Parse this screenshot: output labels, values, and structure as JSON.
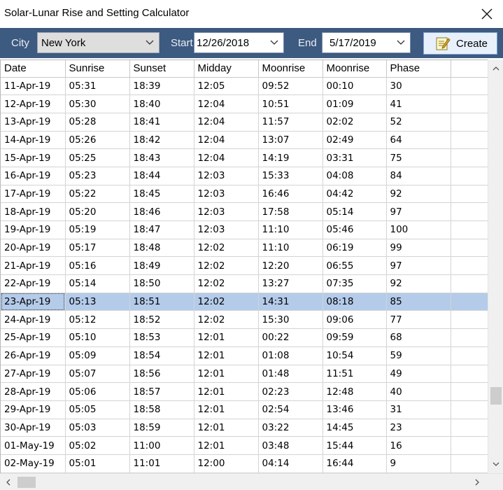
{
  "window": {
    "title": "Solar-Lunar Rise and Setting Calculator"
  },
  "toolbar": {
    "city_label": "City",
    "city_value": "New York",
    "start_label": "Start",
    "start_value": "12/26/2018",
    "end_label": "End",
    "end_value": "5/17/2019",
    "create_label": "Create"
  },
  "table": {
    "headers": [
      "Date",
      "Sunrise",
      "Sunset",
      "Midday",
      "Moonrise",
      "Moonrise",
      "Phase",
      ""
    ],
    "selected_index": 12,
    "rows": [
      [
        "11-Apr-19",
        "05:31",
        "18:39",
        "12:05",
        "09:52",
        "00:10",
        "30"
      ],
      [
        "12-Apr-19",
        "05:30",
        "18:40",
        "12:04",
        "10:51",
        "01:09",
        "41"
      ],
      [
        "13-Apr-19",
        "05:28",
        "18:41",
        "12:04",
        "11:57",
        "02:02",
        "52"
      ],
      [
        "14-Apr-19",
        "05:26",
        "18:42",
        "12:04",
        "13:07",
        "02:49",
        "64"
      ],
      [
        "15-Apr-19",
        "05:25",
        "18:43",
        "12:04",
        "14:19",
        "03:31",
        "75"
      ],
      [
        "16-Apr-19",
        "05:23",
        "18:44",
        "12:03",
        "15:33",
        "04:08",
        "84"
      ],
      [
        "17-Apr-19",
        "05:22",
        "18:45",
        "12:03",
        "16:46",
        "04:42",
        "92"
      ],
      [
        "18-Apr-19",
        "05:20",
        "18:46",
        "12:03",
        "17:58",
        "05:14",
        "97"
      ],
      [
        "19-Apr-19",
        "05:19",
        "18:47",
        "12:03",
        "11:10",
        "05:46",
        "100"
      ],
      [
        "20-Apr-19",
        "05:17",
        "18:48",
        "12:02",
        "11:10",
        "06:19",
        "99"
      ],
      [
        "21-Apr-19",
        "05:16",
        "18:49",
        "12:02",
        "12:20",
        "06:55",
        "97"
      ],
      [
        "22-Apr-19",
        "05:14",
        "18:50",
        "12:02",
        "13:27",
        "07:35",
        "92"
      ],
      [
        "23-Apr-19",
        "05:13",
        "18:51",
        "12:02",
        "14:31",
        "08:18",
        "85"
      ],
      [
        "24-Apr-19",
        "05:12",
        "18:52",
        "12:02",
        "15:30",
        "09:06",
        "77"
      ],
      [
        "25-Apr-19",
        "05:10",
        "18:53",
        "12:01",
        "00:22",
        "09:59",
        "68"
      ],
      [
        "26-Apr-19",
        "05:09",
        "18:54",
        "12:01",
        "01:08",
        "10:54",
        "59"
      ],
      [
        "27-Apr-19",
        "05:07",
        "18:56",
        "12:01",
        "01:48",
        "11:51",
        "49"
      ],
      [
        "28-Apr-19",
        "05:06",
        "18:57",
        "12:01",
        "02:23",
        "12:48",
        "40"
      ],
      [
        "29-Apr-19",
        "05:05",
        "18:58",
        "12:01",
        "02:54",
        "13:46",
        "31"
      ],
      [
        "30-Apr-19",
        "05:03",
        "18:59",
        "12:01",
        "03:22",
        "14:45",
        "23"
      ],
      [
        "01-May-19",
        "05:02",
        "11:00",
        "12:01",
        "03:48",
        "15:44",
        "16"
      ],
      [
        "02-May-19",
        "05:01",
        "11:01",
        "12:00",
        "04:14",
        "16:44",
        "9"
      ]
    ]
  },
  "icons": {
    "close": "close-icon",
    "dropdown": "chevron-down-icon",
    "create": "edit-note-icon",
    "scroll_up": "scroll-up-icon",
    "scroll_down": "scroll-down-icon",
    "scroll_left": "scroll-left-icon",
    "scroll_right": "scroll-right-icon"
  },
  "colors": {
    "toolbar_bg": "#3d5a80",
    "selected_row": "#b4cbea",
    "create_button_bg": "#e8f0fb"
  }
}
